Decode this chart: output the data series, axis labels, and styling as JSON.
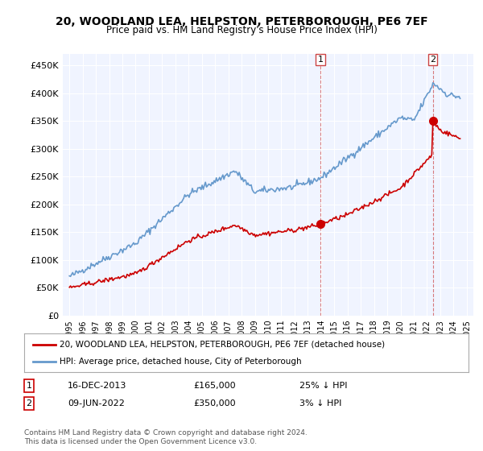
{
  "title": "20, WOODLAND LEA, HELPSTON, PETERBOROUGH, PE6 7EF",
  "subtitle": "Price paid vs. HM Land Registry's House Price Index (HPI)",
  "legend_line1": "20, WOODLAND LEA, HELPSTON, PETERBOROUGH, PE6 7EF (detached house)",
  "legend_line2": "HPI: Average price, detached house, City of Peterborough",
  "footnote": "Contains HM Land Registry data © Crown copyright and database right 2024.\nThis data is licensed under the Open Government Licence v3.0.",
  "table_rows": [
    {
      "num": "1",
      "date": "16-DEC-2013",
      "price": "£165,000",
      "vs_hpi": "25% ↓ HPI"
    },
    {
      "num": "2",
      "date": "09-JUN-2022",
      "price": "£350,000",
      "vs_hpi": "3% ↓ HPI"
    }
  ],
  "red_color": "#cc0000",
  "blue_color": "#6699cc",
  "marker1_x": 2013.96,
  "marker1_y": 165000,
  "marker2_x": 2022.44,
  "marker2_y": 350000,
  "ylim": [
    0,
    470000
  ],
  "xlim_start": 1994.5,
  "xlim_end": 2025.5,
  "background_color": "#ffffff",
  "plot_bg_color": "#f0f4ff",
  "grid_color": "#ffffff",
  "vline1_x": 2013.96,
  "vline2_x": 2022.44,
  "yticks": [
    0,
    50000,
    100000,
    150000,
    200000,
    250000,
    300000,
    350000,
    400000,
    450000
  ],
  "ytick_labels": [
    "£0",
    "£50K",
    "£100K",
    "£150K",
    "£200K",
    "£250K",
    "£300K",
    "£350K",
    "£400K",
    "£450K"
  ],
  "xticks": [
    1995,
    1996,
    1997,
    1998,
    1999,
    2000,
    2001,
    2002,
    2003,
    2004,
    2005,
    2006,
    2007,
    2008,
    2009,
    2010,
    2011,
    2012,
    2013,
    2014,
    2015,
    2016,
    2017,
    2018,
    2019,
    2020,
    2021,
    2022,
    2023,
    2024,
    2025
  ]
}
